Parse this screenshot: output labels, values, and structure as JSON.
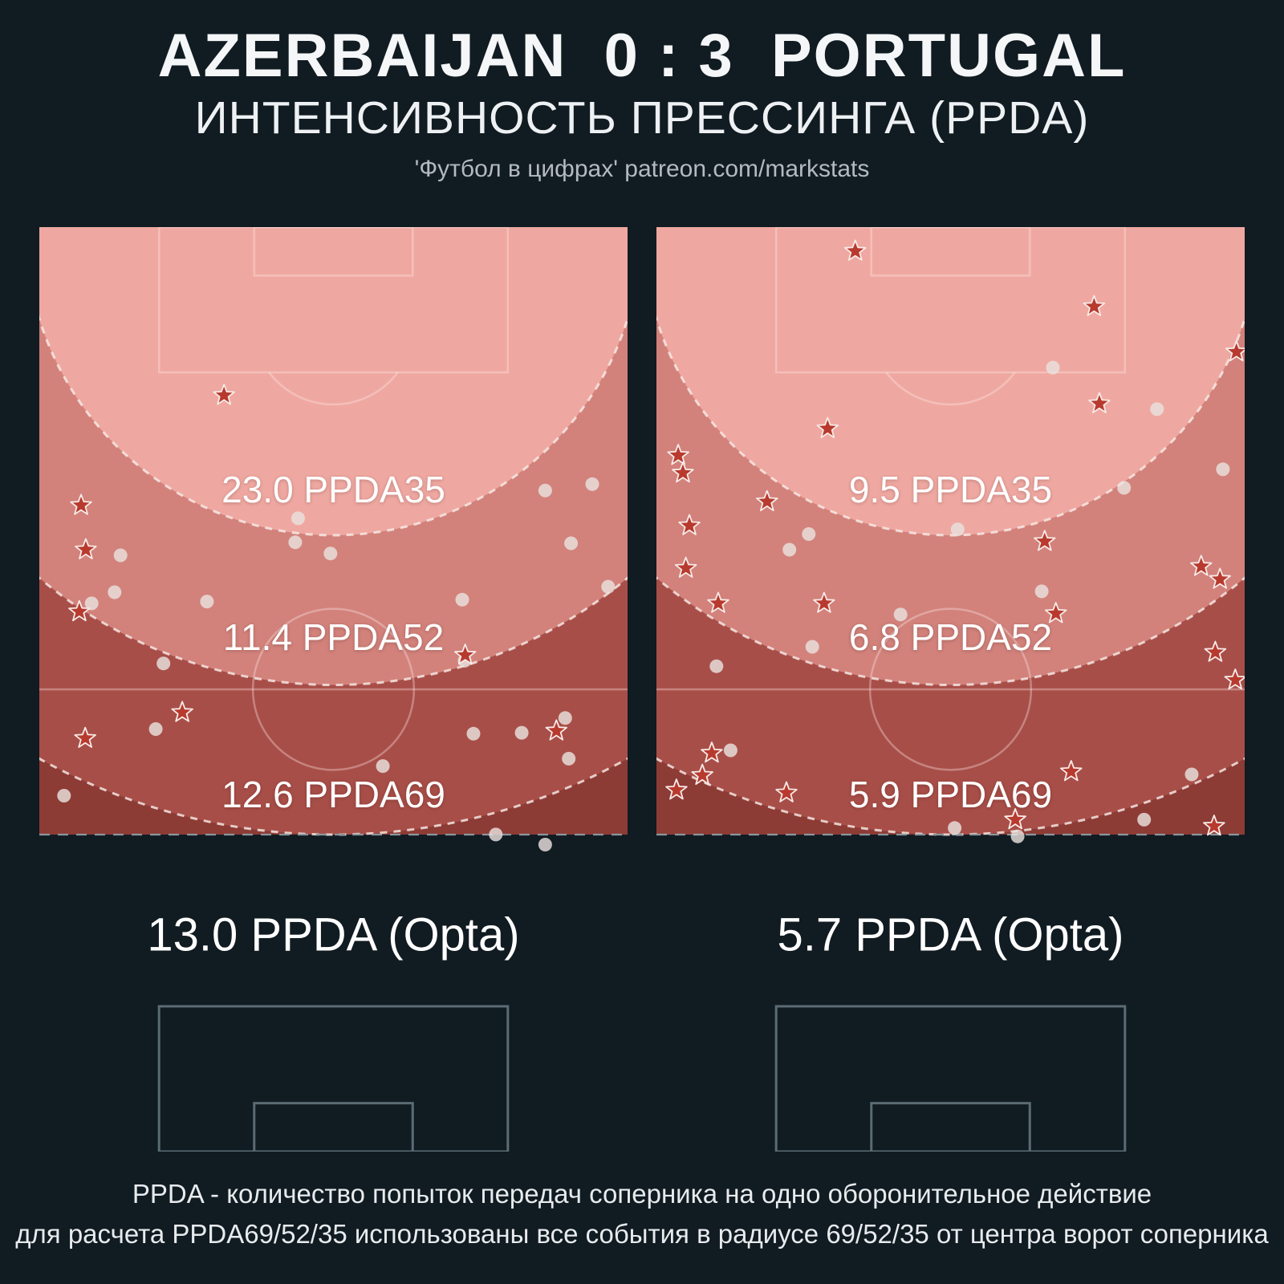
{
  "header": {
    "title": "AZERBAIJAN  0 : 3  PORTUGAL",
    "subtitle": "ИНТЕНСИВНОСТЬ ПРЕССИНГА (PPDA)",
    "credit": "'Футбол в цифрах' patreon.com/markstats"
  },
  "footer": {
    "line1": "PPDA - количество попыток передач соперника на одно оборонительное действие",
    "line2": "для расчета PPDA69/52/35 использованы все события в радиусе 69/52/35 от центра ворот соперника"
  },
  "colors": {
    "background": "#111b22",
    "zone_35": "#efa8a1",
    "zone_52": "#d2827b",
    "zone_69": "#a84e48",
    "zone_outer": "#8d3b35",
    "zone_border_dash": "rgba(248,236,233,0.9)",
    "limit_line": "#8b969c",
    "pitch_line_light": "rgba(255,236,232,0.35)",
    "pitch_line_dark": "#5b6b74",
    "pass_dot": "#e9e2de",
    "defensive_star_fill": "#b83a2e",
    "defensive_star_stroke": "#f6ebe8",
    "text_primary": "#f4f6f7",
    "text_muted": "#b3bac0"
  },
  "chart_data": [
    {
      "type": "scatter",
      "team": "Azerbaijan",
      "zone_radii_m": [
        35,
        52,
        69
      ],
      "values": {
        "ppda35": 23.0,
        "ppda52": 11.4,
        "ppda69": 12.6,
        "ppda_opta": 13.0
      },
      "labels": {
        "ppda35": "23.0 PPDA35",
        "ppda52": "11.4 PPDA52",
        "ppda69": "12.6 PPDA69",
        "opta": "13.0 PPDA (Opta)"
      },
      "passes_pct": [
        [
          44.0,
          31.5
        ],
        [
          86.0,
          28.5
        ],
        [
          94.0,
          27.8
        ],
        [
          13.8,
          35.5
        ],
        [
          43.5,
          34.1
        ],
        [
          49.5,
          35.3
        ],
        [
          12.8,
          39.5
        ],
        [
          8.9,
          40.7
        ],
        [
          28.5,
          40.5
        ],
        [
          21.1,
          47.2
        ],
        [
          71.9,
          40.3
        ],
        [
          90.4,
          34.2
        ],
        [
          96.7,
          38.9
        ],
        [
          72.3,
          46.9
        ],
        [
          19.8,
          54.3
        ],
        [
          58.4,
          58.3
        ],
        [
          73.8,
          54.8
        ],
        [
          82.0,
          54.7
        ],
        [
          89.4,
          53.1
        ],
        [
          90.0,
          57.5
        ],
        [
          4.2,
          61.5
        ],
        [
          77.6,
          65.7
        ],
        [
          86.0,
          66.8
        ]
      ],
      "defensive_actions_pct": [
        [
          31.4,
          18.2
        ],
        [
          7.1,
          30.1
        ],
        [
          7.9,
          34.9
        ],
        [
          6.8,
          41.6
        ],
        [
          72.4,
          46.3
        ],
        [
          24.3,
          52.5
        ],
        [
          7.8,
          55.3
        ],
        [
          87.9,
          54.5
        ]
      ]
    },
    {
      "type": "scatter",
      "team": "Portugal",
      "zone_radii_m": [
        35,
        52,
        69
      ],
      "values": {
        "ppda35": 9.5,
        "ppda52": 6.8,
        "ppda69": 5.9,
        "ppda_opta": 5.7
      },
      "labels": {
        "ppda35": "9.5 PPDA35",
        "ppda52": "6.8 PPDA52",
        "ppda69": "5.9 PPDA69",
        "opta": "5.7 PPDA (Opta)"
      },
      "passes_pct": [
        [
          67.4,
          15.2
        ],
        [
          85.1,
          19.7
        ],
        [
          96.3,
          26.2
        ],
        [
          79.5,
          28.2
        ],
        [
          25.9,
          33.2
        ],
        [
          51.2,
          32.7
        ],
        [
          22.6,
          34.9
        ],
        [
          65.5,
          39.4
        ],
        [
          41.5,
          41.9
        ],
        [
          26.5,
          45.4
        ],
        [
          10.2,
          47.5
        ],
        [
          12.6,
          56.6
        ],
        [
          91.0,
          59.2
        ],
        [
          50.7,
          65.0
        ],
        [
          82.9,
          64.1
        ],
        [
          61.4,
          65.9
        ]
      ],
      "defensive_actions_pct": [
        [
          33.8,
          2.6
        ],
        [
          74.4,
          8.6
        ],
        [
          98.6,
          13.5
        ],
        [
          75.3,
          19.1
        ],
        [
          29.1,
          21.8
        ],
        [
          3.7,
          24.7
        ],
        [
          4.5,
          26.6
        ],
        [
          18.8,
          29.7
        ],
        [
          5.6,
          32.3
        ],
        [
          66.0,
          34.0
        ],
        [
          5.0,
          36.9
        ],
        [
          92.6,
          36.7
        ],
        [
          95.8,
          38.1
        ],
        [
          10.5,
          40.7
        ],
        [
          28.5,
          40.7
        ],
        [
          67.9,
          41.8
        ],
        [
          95.0,
          46.0
        ],
        [
          98.4,
          49.0
        ],
        [
          9.4,
          56.9
        ],
        [
          7.8,
          59.3
        ],
        [
          3.4,
          60.9
        ],
        [
          22.1,
          61.2
        ],
        [
          70.5,
          58.9
        ],
        [
          61.0,
          64.1
        ],
        [
          94.8,
          64.8
        ]
      ]
    }
  ]
}
